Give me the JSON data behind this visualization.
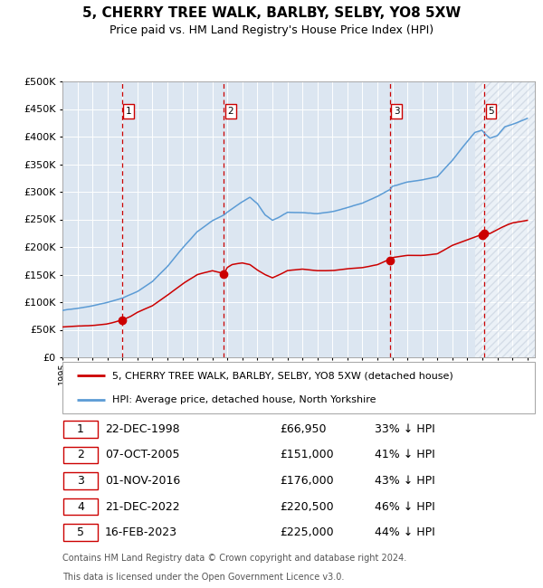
{
  "title": "5, CHERRY TREE WALK, BARLBY, SELBY, YO8 5XW",
  "subtitle": "Price paid vs. HM Land Registry's House Price Index (HPI)",
  "legend_line1": "5, CHERRY TREE WALK, BARLBY, SELBY, YO8 5XW (detached house)",
  "legend_line2": "HPI: Average price, detached house, North Yorkshire",
  "footer1": "Contains HM Land Registry data © Crown copyright and database right 2024.",
  "footer2": "This data is licensed under the Open Government Licence v3.0.",
  "transactions": [
    {
      "num": 1,
      "date": "22-DEC-1998",
      "price": 66950,
      "pct": "33% ↓ HPI",
      "year_x": 1998.97
    },
    {
      "num": 2,
      "date": "07-OCT-2005",
      "price": 151000,
      "pct": "41% ↓ HPI",
      "year_x": 2005.77
    },
    {
      "num": 3,
      "date": "01-NOV-2016",
      "price": 176000,
      "pct": "43% ↓ HPI",
      "year_x": 2016.84
    },
    {
      "num": 4,
      "date": "21-DEC-2022",
      "price": 220500,
      "pct": "46% ↓ HPI",
      "year_x": 2022.97
    },
    {
      "num": 5,
      "date": "16-FEB-2023",
      "price": 225000,
      "pct": "44% ↓ HPI",
      "year_x": 2023.12
    }
  ],
  "chart_vlines": [
    1,
    2,
    3,
    5
  ],
  "hpi_color": "#5b9bd5",
  "sale_color": "#cc0000",
  "bg_color": "#dce6f1",
  "hatch_color": "#b8c4d4",
  "vline_color": "#cc0000",
  "grid_color": "#ffffff",
  "ylim": [
    0,
    500000
  ],
  "xlim_start": 1995.0,
  "xlim_end": 2026.5,
  "hatch_start": 2022.5,
  "yticks": [
    0,
    50000,
    100000,
    150000,
    200000,
    250000,
    300000,
    350000,
    400000,
    450000,
    500000
  ],
  "xticks": [
    1995,
    1996,
    1997,
    1998,
    1999,
    2000,
    2001,
    2002,
    2003,
    2004,
    2005,
    2006,
    2007,
    2008,
    2009,
    2010,
    2011,
    2012,
    2013,
    2014,
    2015,
    2016,
    2017,
    2018,
    2019,
    2020,
    2021,
    2022,
    2023,
    2024,
    2025,
    2026
  ]
}
